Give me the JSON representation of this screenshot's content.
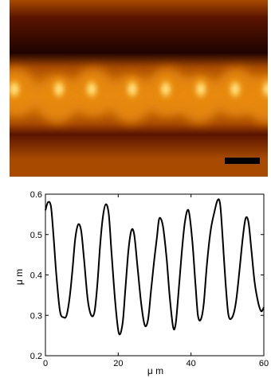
{
  "image": {
    "colormap": [
      "#1f0300",
      "#5a1500",
      "#a84a00",
      "#e88a10",
      "#ffd24a",
      "#fff6c8"
    ],
    "scale_bar_color": "#000000"
  },
  "chart_data": {
    "type": "line",
    "xlabel": "μ m",
    "ylabel": "μ m",
    "xlim": [
      0,
      60
    ],
    "ylim": [
      0.2,
      0.6
    ],
    "xticks": [
      "0",
      "20",
      "40",
      "60"
    ],
    "yticks": [
      "0.2",
      "0.3",
      "0.4",
      "0.5",
      "0.6"
    ],
    "grid": false,
    "line_color": "#000000",
    "series": [
      {
        "x": [
          0,
          0.7,
          1.5,
          2.2,
          3.0,
          4.0,
          5.0,
          5.8,
          6.6,
          7.4,
          8.2,
          9.0,
          9.8,
          10.6,
          11.6,
          12.6,
          13.5,
          14.3,
          15.0,
          15.8,
          16.6,
          17.4,
          18.2,
          19.2,
          20.2,
          21.2,
          22.0,
          22.8,
          23.6,
          24.4,
          25.3,
          26.3,
          27.3,
          28.2,
          29.0,
          29.8,
          30.6,
          31.3,
          32.3,
          33.3,
          34.2,
          35.1,
          35.8,
          36.6,
          37.4,
          38.3,
          39.3,
          40.3,
          41.2,
          41.9,
          42.7,
          43.5,
          44.4,
          45.4,
          46.4,
          47.3,
          48.0,
          48.7,
          49.5,
          50.3,
          51.3,
          52.3,
          53.3,
          54.2,
          55.0,
          55.8,
          56.6,
          57.5,
          58.5,
          59.3,
          60.0
        ],
        "y": [
          0.56,
          0.58,
          0.57,
          0.5,
          0.4,
          0.31,
          0.295,
          0.3,
          0.34,
          0.41,
          0.49,
          0.525,
          0.51,
          0.44,
          0.34,
          0.3,
          0.31,
          0.38,
          0.47,
          0.545,
          0.575,
          0.55,
          0.45,
          0.33,
          0.255,
          0.28,
          0.37,
          0.46,
          0.51,
          0.5,
          0.42,
          0.33,
          0.275,
          0.29,
          0.36,
          0.43,
          0.49,
          0.54,
          0.52,
          0.44,
          0.34,
          0.27,
          0.28,
          0.36,
          0.45,
          0.53,
          0.56,
          0.49,
          0.38,
          0.3,
          0.29,
          0.33,
          0.43,
          0.51,
          0.555,
          0.585,
          0.575,
          0.49,
          0.38,
          0.3,
          0.295,
          0.33,
          0.41,
          0.49,
          0.54,
          0.53,
          0.46,
          0.38,
          0.33,
          0.31,
          0.32
        ]
      }
    ]
  }
}
